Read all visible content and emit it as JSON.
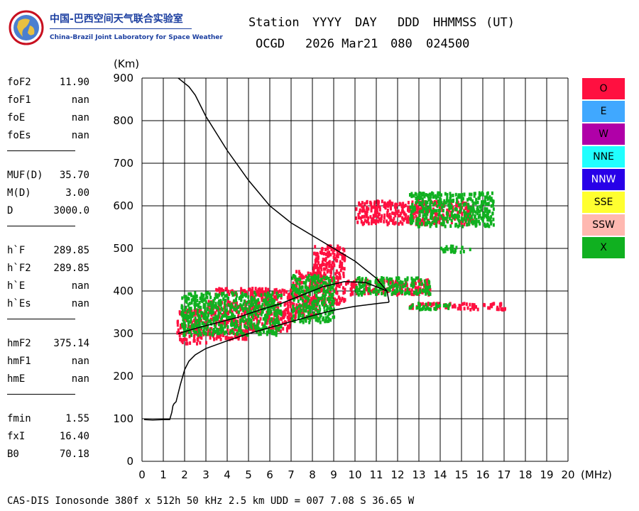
{
  "logo": {
    "cn": "中国-巴西空间天气联合实验室",
    "en": "China-Brazil Joint Laboratory for Space Weather"
  },
  "header": {
    "labels": [
      "Station",
      "YYYY",
      "DAY",
      "DDD",
      "HHMMSS",
      "(UT)"
    ],
    "values": [
      "OCGD",
      "2026 Mar21",
      "080",
      "024500"
    ]
  },
  "parameters": [
    {
      "name": "foF2",
      "value": "11.90"
    },
    {
      "name": "foF1",
      "value": "nan"
    },
    {
      "name": "foE",
      "value": "nan"
    },
    {
      "name": "foEs",
      "value": "nan"
    },
    {
      "name": "MUF(D)",
      "value": "35.70"
    },
    {
      "name": "M(D)",
      "value": "3.00"
    },
    {
      "name": "D",
      "value": "3000.0"
    },
    {
      "name": "h`F",
      "value": "289.85"
    },
    {
      "name": "h`F2",
      "value": "289.85"
    },
    {
      "name": "h`E",
      "value": "nan"
    },
    {
      "name": "h`Es",
      "value": "nan"
    },
    {
      "name": "hmF2",
      "value": "375.14"
    },
    {
      "name": "hmF1",
      "value": "nan"
    },
    {
      "name": "hmE",
      "value": "nan"
    },
    {
      "name": "fmin",
      "value": "1.55"
    },
    {
      "name": "fxI",
      "value": "16.40"
    },
    {
      "name": "B0",
      "value": "70.18"
    }
  ],
  "legend": [
    {
      "label": "O",
      "color": "#ff1040"
    },
    {
      "label": "E",
      "color": "#40a8ff"
    },
    {
      "label": "W",
      "color": "#b000a8"
    },
    {
      "label": "NNE",
      "color": "#20ffff"
    },
    {
      "label": "NNW",
      "color": "#2800e8"
    },
    {
      "label": "SSE",
      "color": "#ffff30"
    },
    {
      "label": "SSW",
      "color": "#ffb8b0"
    },
    {
      "label": "X",
      "color": "#10b020"
    }
  ],
  "footer": "CAS-DIS Ionosonde 380f x 512h 50 kHz 2.5 km UDD = 007 7.08 S 36.65 W",
  "chart_data": {
    "type": "scatter",
    "xlabel": "(MHz)",
    "ylabel": "(Km)",
    "xlim": [
      0,
      20
    ],
    "ylim": [
      0,
      900
    ],
    "xticks": [
      0,
      1,
      2,
      3,
      4,
      5,
      6,
      7,
      8,
      9,
      10,
      11,
      12,
      13,
      14,
      15,
      16,
      17,
      18,
      19,
      20
    ],
    "yticks": [
      0,
      100,
      200,
      300,
      400,
      500,
      600,
      700,
      800,
      900
    ],
    "grid": true,
    "legend_position": "right",
    "traces": [
      {
        "name": "O",
        "color": "#ff1040",
        "regions": [
          {
            "x0": 1.6,
            "x1": 3.0,
            "y0": 280,
            "y1": 360
          },
          {
            "x0": 3.0,
            "x1": 5.0,
            "y0": 290,
            "y1": 380
          },
          {
            "x0": 5.0,
            "x1": 7.0,
            "y0": 310,
            "y1": 410
          },
          {
            "x0": 7.0,
            "x1": 8.2,
            "y0": 340,
            "y1": 450
          },
          {
            "x0": 8.0,
            "x1": 9.5,
            "y0": 370,
            "y1": 510
          },
          {
            "x0": 3.4,
            "x1": 6.0,
            "y0": 395,
            "y1": 410
          },
          {
            "x0": 9.5,
            "x1": 13.5,
            "y0": 395,
            "y1": 430
          },
          {
            "x0": 12.5,
            "x1": 17.0,
            "y0": 360,
            "y1": 375
          },
          {
            "x0": 10.0,
            "x1": 15.5,
            "y0": 560,
            "y1": 615
          }
        ]
      },
      {
        "name": "X",
        "color": "#10b020",
        "regions": [
          {
            "x0": 1.8,
            "x1": 6.5,
            "y0": 300,
            "y1": 400
          },
          {
            "x0": 7.0,
            "x1": 9.0,
            "y0": 330,
            "y1": 440
          },
          {
            "x0": 10.0,
            "x1": 13.5,
            "y0": 395,
            "y1": 435
          },
          {
            "x0": 12.5,
            "x1": 16.5,
            "y0": 555,
            "y1": 635
          },
          {
            "x0": 14.0,
            "x1": 15.5,
            "y0": 495,
            "y1": 510
          },
          {
            "x0": 12.5,
            "x1": 14.5,
            "y0": 360,
            "y1": 375
          }
        ]
      }
    ],
    "profile_curve": {
      "x": [
        0.1,
        0.5,
        1.0,
        1.3,
        1.4,
        1.45,
        1.5,
        1.6,
        1.8,
        2.0,
        2.2,
        2.5,
        3.0,
        4.0,
        5.0,
        6.0,
        7.0,
        8.0,
        9.0,
        10.0,
        10.8,
        11.3,
        11.5,
        11.6
      ],
      "y": [
        98,
        97,
        98,
        98,
        115,
        130,
        135,
        140,
        180,
        215,
        235,
        250,
        265,
        283,
        300,
        314,
        328,
        342,
        355,
        364,
        369,
        372,
        373,
        374
      ]
    },
    "profile_upper": {
      "x": [
        11.6,
        11.5,
        11.0,
        10.5,
        10.0,
        9.5,
        9.0,
        8.0,
        7.0,
        6.0,
        5.0,
        4.0,
        3.0,
        2.5,
        2.2,
        1.7
      ],
      "y": [
        374,
        400,
        430,
        450,
        470,
        485,
        500,
        530,
        560,
        600,
        660,
        730,
        810,
        860,
        880,
        900
      ]
    },
    "trace_line": {
      "x": [
        1.7,
        2.5,
        3.5,
        4.5,
        5.5,
        6.5,
        7.5,
        8.5,
        9.5,
        10.5,
        11.5
      ],
      "y": [
        300,
        312,
        325,
        338,
        355,
        370,
        390,
        410,
        422,
        420,
        400
      ]
    }
  }
}
